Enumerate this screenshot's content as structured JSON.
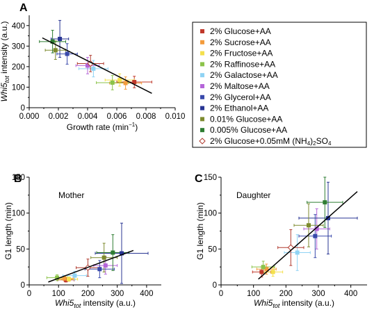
{
  "legend": {
    "items": [
      {
        "label": "2% Glucose+AA",
        "color": "#c0392b",
        "marker": "square"
      },
      {
        "label": "2% Sucrose+AA",
        "color": "#f39c3d",
        "marker": "square"
      },
      {
        "label": "2% Fructose+AA",
        "color": "#f4e04d",
        "marker": "square"
      },
      {
        "label": "2% Raffinose+AA",
        "color": "#8bc34a",
        "marker": "square"
      },
      {
        "label": "2% Galactose+AA",
        "color": "#8fd3f4",
        "marker": "square"
      },
      {
        "label": "2% Maltose+AA",
        "color": "#b565d9",
        "marker": "square"
      },
      {
        "label": "2% Glycerol+AA",
        "color": "#3949ab",
        "marker": "square"
      },
      {
        "label": "2% Ethanol+AA",
        "color": "#283593",
        "marker": "square"
      },
      {
        "label": "0.01% Glucose+AA",
        "color": "#7d8a2e",
        "marker": "square"
      },
      {
        "label": "0.005% Glucose+AA",
        "color": "#2e7d32",
        "marker": "square"
      },
      {
        "label": "2% Glucose+0.05mM (NH4)2SO4",
        "color": "#b03a2e",
        "marker": "diamond-open"
      }
    ]
  },
  "chart_data": [
    {
      "panel": "A",
      "type": "scatter",
      "title": "",
      "xlabel": "Growth rate (min⁻¹)",
      "ylabel": "Whi5tot intensity (a.u.)",
      "xlim": [
        0,
        0.01
      ],
      "ylim": [
        0,
        450
      ],
      "xticks": [
        "0.000",
        "0.002",
        "0.004",
        "0.006",
        "0.008",
        "0.010"
      ],
      "yticks": [
        "0",
        "100",
        "200",
        "300",
        "400"
      ],
      "fit_line": {
        "x": [
          0.0009,
          0.0084
        ],
        "y": [
          340,
          70
        ]
      },
      "points": [
        {
          "series": "2% Glucose+AA",
          "x": 0.0072,
          "y": 125,
          "xerr": 0.0012,
          "yerr": 28
        },
        {
          "series": "2% Sucrose+AA",
          "x": 0.0066,
          "y": 120,
          "xerr": 0.0011,
          "yerr": 30
        },
        {
          "series": "2% Fructose+AA",
          "x": 0.0062,
          "y": 135,
          "xerr": 0.001,
          "yerr": 30
        },
        {
          "series": "2% Raffinose+AA",
          "x": 0.0057,
          "y": 122,
          "xerr": 0.0011,
          "yerr": 35
        },
        {
          "series": "2% Galactose+AA",
          "x": 0.0044,
          "y": 190,
          "xerr": 0.001,
          "yerr": 40
        },
        {
          "series": "2% Maltose+AA",
          "x": 0.004,
          "y": 205,
          "xerr": 0.0008,
          "yerr": 40
        },
        {
          "series": "2% Glycerol+AA",
          "x": 0.0026,
          "y": 262,
          "xerr": 0.0007,
          "yerr": 50
        },
        {
          "series": "2% Ethanol+AA",
          "x": 0.0021,
          "y": 335,
          "xerr": 0.0006,
          "yerr": 90
        },
        {
          "series": "0.01% Glucose+AA",
          "x": 0.0018,
          "y": 280,
          "xerr": 0.0007,
          "yerr": 45
        },
        {
          "series": "0.005% Glucose+AA",
          "x": 0.0016,
          "y": 322,
          "xerr": 0.0009,
          "yerr": 55
        },
        {
          "series": "2% Glucose+0.05mM (NH4)2SO4",
          "x": 0.0042,
          "y": 215,
          "xerr": 0.0009,
          "yerr": 40
        }
      ]
    },
    {
      "panel": "B",
      "type": "scatter",
      "title": "Mother",
      "xlabel": "Whi5tot intensity (a.u.)",
      "ylabel": "G1 length (min)",
      "xlim": [
        0,
        450
      ],
      "ylim": [
        0,
        150
      ],
      "xticks": [
        "0",
        "100",
        "200",
        "300",
        "400"
      ],
      "yticks": [
        "0",
        "50",
        "100",
        "150"
      ],
      "fit_line": {
        "x": [
          65,
          355
        ],
        "y": [
          4,
          48
        ]
      },
      "points": [
        {
          "series": "2% Glucose+AA",
          "x": 125,
          "y": 7,
          "xerr": 28,
          "yerr": 3
        },
        {
          "series": "2% Sucrose+AA",
          "x": 120,
          "y": 9,
          "xerr": 30,
          "yerr": 3
        },
        {
          "series": "2% Fructose+AA",
          "x": 135,
          "y": 8,
          "xerr": 30,
          "yerr": 3
        },
        {
          "series": "2% Raffinose+AA",
          "x": 95,
          "y": 10,
          "xerr": 35,
          "yerr": 4
        },
        {
          "series": "2% Galactose+AA",
          "x": 155,
          "y": 13,
          "xerr": 40,
          "yerr": 6
        },
        {
          "series": "2% Maltose+AA",
          "x": 260,
          "y": 27,
          "xerr": 40,
          "yerr": 12
        },
        {
          "series": "2% Glycerol+AA",
          "x": 240,
          "y": 22,
          "xerr": 50,
          "yerr": 12
        },
        {
          "series": "2% Ethanol+AA",
          "x": 315,
          "y": 44,
          "xerr": 90,
          "yerr": 42
        },
        {
          "series": "0.01% Glucose+AA",
          "x": 255,
          "y": 38,
          "xerr": 45,
          "yerr": 20
        },
        {
          "series": "0.005% Glucose+AA",
          "x": 285,
          "y": 45,
          "xerr": 55,
          "yerr": 25
        },
        {
          "series": "2% Glucose+0.05mM (NH4)2SO4",
          "x": 200,
          "y": 24,
          "xerr": 40,
          "yerr": 12
        }
      ]
    },
    {
      "panel": "C",
      "type": "scatter",
      "title": "Daughter",
      "xlabel": "Whi5tot intensity (a.u.)",
      "ylabel": "G1 length (min)",
      "xlim": [
        0,
        450
      ],
      "ylim": [
        0,
        150
      ],
      "xticks": [
        "0",
        "100",
        "200",
        "300",
        "400"
      ],
      "yticks": [
        "0",
        "50",
        "100",
        "150"
      ],
      "fit_line": {
        "x": [
          115,
          420
        ],
        "y": [
          8,
          130
        ]
      },
      "points": [
        {
          "series": "2% Glucose+AA",
          "x": 125,
          "y": 18,
          "xerr": 28,
          "yerr": 7
        },
        {
          "series": "2% Sucrose+AA",
          "x": 140,
          "y": 22,
          "xerr": 30,
          "yerr": 7
        },
        {
          "series": "2% Fructose+AA",
          "x": 160,
          "y": 18,
          "xerr": 30,
          "yerr": 6
        },
        {
          "series": "2% Raffinose+AA",
          "x": 130,
          "y": 25,
          "xerr": 35,
          "yerr": 8
        },
        {
          "series": "2% Galactose+AA",
          "x": 235,
          "y": 45,
          "xerr": 40,
          "yerr": 25
        },
        {
          "series": "2% Maltose+AA",
          "x": 295,
          "y": 78,
          "xerr": 40,
          "yerr": 28
        },
        {
          "series": "2% Glycerol+AA",
          "x": 290,
          "y": 68,
          "xerr": 50,
          "yerr": 30
        },
        {
          "series": "2% Ethanol+AA",
          "x": 330,
          "y": 93,
          "xerr": 90,
          "yerr": 50
        },
        {
          "series": "0.01% Glucose+AA",
          "x": 270,
          "y": 83,
          "xerr": 45,
          "yerr": 30
        },
        {
          "series": "0.005% Glucose+AA",
          "x": 320,
          "y": 115,
          "xerr": 55,
          "yerr": 35
        },
        {
          "series": "2% Glucose+0.05mM (NH4)2SO4",
          "x": 215,
          "y": 52,
          "xerr": 40,
          "yerr": 25
        }
      ]
    }
  ]
}
